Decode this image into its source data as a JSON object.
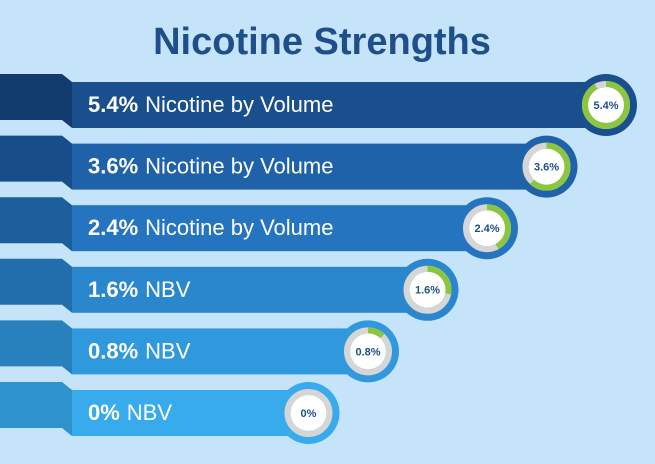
{
  "title": "Nicotine Strengths",
  "items": [
    {
      "strength": "5.4%",
      "text": "Nicotine by Volume",
      "badge": "5.4%",
      "gauge": 0.92
    },
    {
      "strength": "3.6%",
      "text": "Nicotine by Volume",
      "badge": "3.6%",
      "gauge": 0.62
    },
    {
      "strength": "2.4%",
      "text": "Nicotine by Volume",
      "badge": "2.4%",
      "gauge": 0.42
    },
    {
      "strength": "1.6%",
      "text": "NBV",
      "badge": "1.6%",
      "gauge": 0.28
    },
    {
      "strength": "0.8%",
      "text": "NBV",
      "badge": "0.8%",
      "gauge": 0.12
    },
    {
      "strength": "0%",
      "text": "NBV",
      "badge": "0%",
      "gauge": 0
    }
  ]
}
